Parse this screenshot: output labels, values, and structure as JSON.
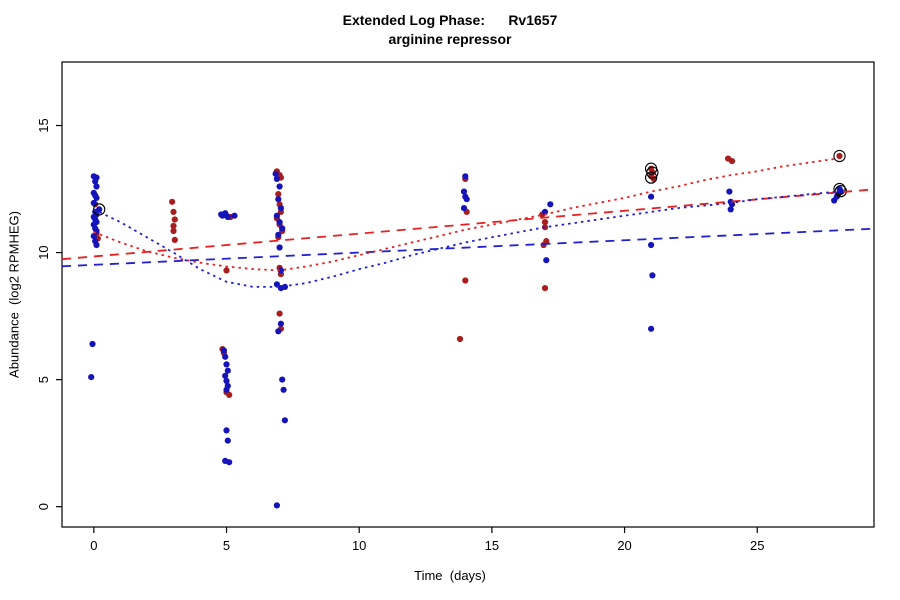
{
  "chart_data": {
    "type": "scatter",
    "title": "Extended Log Phase:      Rv1657",
    "subtitle": "arginine repressor",
    "xlabel": "Time  (days)",
    "ylabel": "Abundance  (log2 RPMHEG)",
    "xlim": [
      -1.2,
      29.4
    ],
    "ylim": [
      -0.8,
      17.5
    ],
    "xticks": [
      0,
      5,
      10,
      15,
      20,
      25
    ],
    "yticks": [
      0,
      5,
      10,
      15
    ],
    "grid": false,
    "legend": "none",
    "colors": {
      "red_points": "#a81e1e",
      "blue_points": "#1414b8",
      "red_line": "#e82020",
      "blue_line": "#2020d0",
      "outlier_ring": "#000000"
    },
    "series": [
      {
        "name": "red",
        "color": "#a81e1e",
        "points": [
          [
            0.05,
            11.9
          ],
          [
            0.1,
            10.75
          ],
          [
            0.15,
            10.55
          ],
          [
            2.95,
            12.0
          ],
          [
            3.0,
            11.6
          ],
          [
            3.05,
            11.3
          ],
          [
            3.0,
            11.05
          ],
          [
            3.0,
            10.85
          ],
          [
            3.05,
            10.5
          ],
          [
            4.85,
            6.2
          ],
          [
            4.9,
            6.05
          ],
          [
            5.0,
            9.3
          ],
          [
            5.15,
            11.4
          ],
          [
            5.0,
            4.5
          ],
          [
            5.1,
            4.4
          ],
          [
            6.9,
            13.2
          ],
          [
            7.0,
            13.05
          ],
          [
            7.05,
            12.95
          ],
          [
            6.95,
            12.3
          ],
          [
            7.0,
            11.9
          ],
          [
            7.05,
            11.6
          ],
          [
            6.9,
            11.35
          ],
          [
            7.0,
            11.1
          ],
          [
            7.1,
            10.85
          ],
          [
            6.95,
            10.6
          ],
          [
            7.0,
            9.4
          ],
          [
            7.05,
            9.15
          ],
          [
            7.0,
            7.6
          ],
          [
            7.05,
            7.0
          ],
          [
            13.8,
            6.6
          ],
          [
            14.0,
            12.9
          ],
          [
            14.05,
            11.6
          ],
          [
            14.0,
            8.9
          ],
          [
            16.9,
            11.5
          ],
          [
            17.0,
            11.2
          ],
          [
            17.0,
            11.0
          ],
          [
            17.05,
            10.45
          ],
          [
            16.95,
            10.3
          ],
          [
            17.0,
            8.6
          ],
          [
            21.0,
            13.3
          ],
          [
            21.05,
            13.15
          ],
          [
            21.0,
            13.0
          ],
          [
            21.1,
            12.9
          ],
          [
            23.9,
            13.7
          ],
          [
            24.05,
            13.6
          ],
          [
            28.1,
            13.8
          ]
        ]
      },
      {
        "name": "blue",
        "color": "#1414b8",
        "points": [
          [
            0.0,
            13.0
          ],
          [
            0.1,
            12.95
          ],
          [
            0.05,
            12.8
          ],
          [
            0.1,
            12.6
          ],
          [
            0.0,
            12.35
          ],
          [
            0.05,
            12.25
          ],
          [
            0.1,
            12.15
          ],
          [
            0.0,
            11.95
          ],
          [
            0.2,
            11.7
          ],
          [
            0.05,
            11.6
          ],
          [
            0.1,
            11.5
          ],
          [
            0.0,
            11.4
          ],
          [
            0.05,
            11.3
          ],
          [
            0.1,
            11.2
          ],
          [
            0.0,
            11.1
          ],
          [
            0.05,
            10.95
          ],
          [
            0.1,
            10.85
          ],
          [
            0.0,
            10.65
          ],
          [
            0.05,
            10.45
          ],
          [
            0.1,
            10.3
          ],
          [
            -0.05,
            6.4
          ],
          [
            -0.1,
            5.1
          ],
          [
            4.8,
            11.5
          ],
          [
            4.85,
            11.45
          ],
          [
            4.95,
            11.55
          ],
          [
            5.0,
            11.45
          ],
          [
            5.05,
            11.4
          ],
          [
            5.3,
            11.45
          ],
          [
            4.9,
            6.15
          ],
          [
            4.95,
            5.9
          ],
          [
            5.0,
            5.6
          ],
          [
            5.05,
            5.35
          ],
          [
            4.95,
            5.15
          ],
          [
            5.0,
            4.95
          ],
          [
            5.05,
            4.75
          ],
          [
            5.0,
            4.6
          ],
          [
            5.0,
            3.0
          ],
          [
            5.05,
            2.6
          ],
          [
            4.95,
            1.8
          ],
          [
            5.1,
            1.75
          ],
          [
            6.85,
            13.1
          ],
          [
            6.9,
            12.9
          ],
          [
            7.0,
            12.6
          ],
          [
            6.95,
            12.1
          ],
          [
            7.05,
            11.75
          ],
          [
            6.9,
            11.45
          ],
          [
            7.0,
            11.2
          ],
          [
            7.1,
            10.95
          ],
          [
            6.95,
            10.7
          ],
          [
            7.0,
            10.2
          ],
          [
            7.05,
            9.3
          ],
          [
            6.9,
            8.75
          ],
          [
            7.05,
            8.6
          ],
          [
            7.2,
            8.65
          ],
          [
            7.05,
            7.2
          ],
          [
            6.95,
            6.9
          ],
          [
            7.1,
            5.0
          ],
          [
            7.15,
            4.6
          ],
          [
            7.2,
            3.4
          ],
          [
            6.9,
            0.05
          ],
          [
            13.95,
            12.4
          ],
          [
            14.0,
            12.2
          ],
          [
            14.05,
            12.1
          ],
          [
            13.95,
            11.75
          ],
          [
            14.0,
            13.0
          ],
          [
            17.2,
            11.9
          ],
          [
            17.0,
            11.6
          ],
          [
            17.05,
            9.7
          ],
          [
            21.0,
            12.2
          ],
          [
            21.0,
            10.3
          ],
          [
            21.05,
            9.1
          ],
          [
            21.0,
            7.0
          ],
          [
            23.95,
            12.4
          ],
          [
            24.0,
            12.0
          ],
          [
            24.05,
            11.9
          ],
          [
            24.0,
            11.7
          ],
          [
            27.9,
            12.05
          ],
          [
            28.0,
            12.2
          ],
          [
            28.05,
            12.3
          ],
          [
            28.1,
            12.5
          ],
          [
            28.15,
            12.42
          ]
        ]
      }
    ],
    "circled_outliers": [
      [
        0.2,
        11.7
      ],
      [
        21.0,
        13.3
      ],
      [
        21.05,
        13.15
      ],
      [
        21.0,
        12.95
      ],
      [
        28.1,
        13.8
      ],
      [
        28.1,
        12.5
      ],
      [
        28.15,
        12.42
      ]
    ],
    "curves": [
      {
        "name": "red-linear-fit",
        "color": "#e82020",
        "dash": "dashed",
        "points": [
          [
            -1.2,
            9.74
          ],
          [
            29.4,
            12.49
          ]
        ]
      },
      {
        "name": "blue-linear-fit",
        "color": "#2020d0",
        "dash": "dashed",
        "points": [
          [
            -1.2,
            9.46
          ],
          [
            29.4,
            10.94
          ]
        ]
      },
      {
        "name": "red-loess-fit",
        "color": "#e82020",
        "dash": "dotted",
        "points": [
          [
            0,
            10.8
          ],
          [
            1,
            10.4
          ],
          [
            2,
            10.05
          ],
          [
            3,
            9.8
          ],
          [
            4,
            9.6
          ],
          [
            5,
            9.45
          ],
          [
            6,
            9.35
          ],
          [
            7,
            9.3
          ],
          [
            8,
            9.45
          ],
          [
            9,
            9.65
          ],
          [
            10,
            9.9
          ],
          [
            11,
            10.15
          ],
          [
            12,
            10.4
          ],
          [
            13,
            10.65
          ],
          [
            14,
            10.9
          ],
          [
            15,
            11.1
          ],
          [
            16,
            11.3
          ],
          [
            17,
            11.5
          ],
          [
            18,
            11.75
          ],
          [
            19,
            11.95
          ],
          [
            20,
            12.15
          ],
          [
            21,
            12.4
          ],
          [
            22,
            12.6
          ],
          [
            23,
            12.85
          ],
          [
            24,
            13.05
          ],
          [
            25,
            13.2
          ],
          [
            26,
            13.4
          ],
          [
            27,
            13.55
          ],
          [
            28,
            13.7
          ]
        ]
      },
      {
        "name": "blue-loess-fit",
        "color": "#2020d0",
        "dash": "dotted",
        "points": [
          [
            0,
            11.7
          ],
          [
            1,
            11.2
          ],
          [
            2,
            10.6
          ],
          [
            3,
            10.0
          ],
          [
            4,
            9.35
          ],
          [
            5,
            8.85
          ],
          [
            6,
            8.65
          ],
          [
            7,
            8.65
          ],
          [
            8,
            8.8
          ],
          [
            9,
            9.05
          ],
          [
            10,
            9.35
          ],
          [
            11,
            9.6
          ],
          [
            12,
            9.9
          ],
          [
            13,
            10.15
          ],
          [
            14,
            10.4
          ],
          [
            15,
            10.6
          ],
          [
            16,
            10.8
          ],
          [
            17,
            11.0
          ],
          [
            18,
            11.15
          ],
          [
            19,
            11.3
          ],
          [
            20,
            11.45
          ],
          [
            21,
            11.6
          ],
          [
            22,
            11.75
          ],
          [
            23,
            11.85
          ],
          [
            24,
            11.95
          ],
          [
            25,
            12.1
          ],
          [
            26,
            12.2
          ],
          [
            27,
            12.3
          ],
          [
            28,
            12.4
          ]
        ]
      }
    ]
  }
}
